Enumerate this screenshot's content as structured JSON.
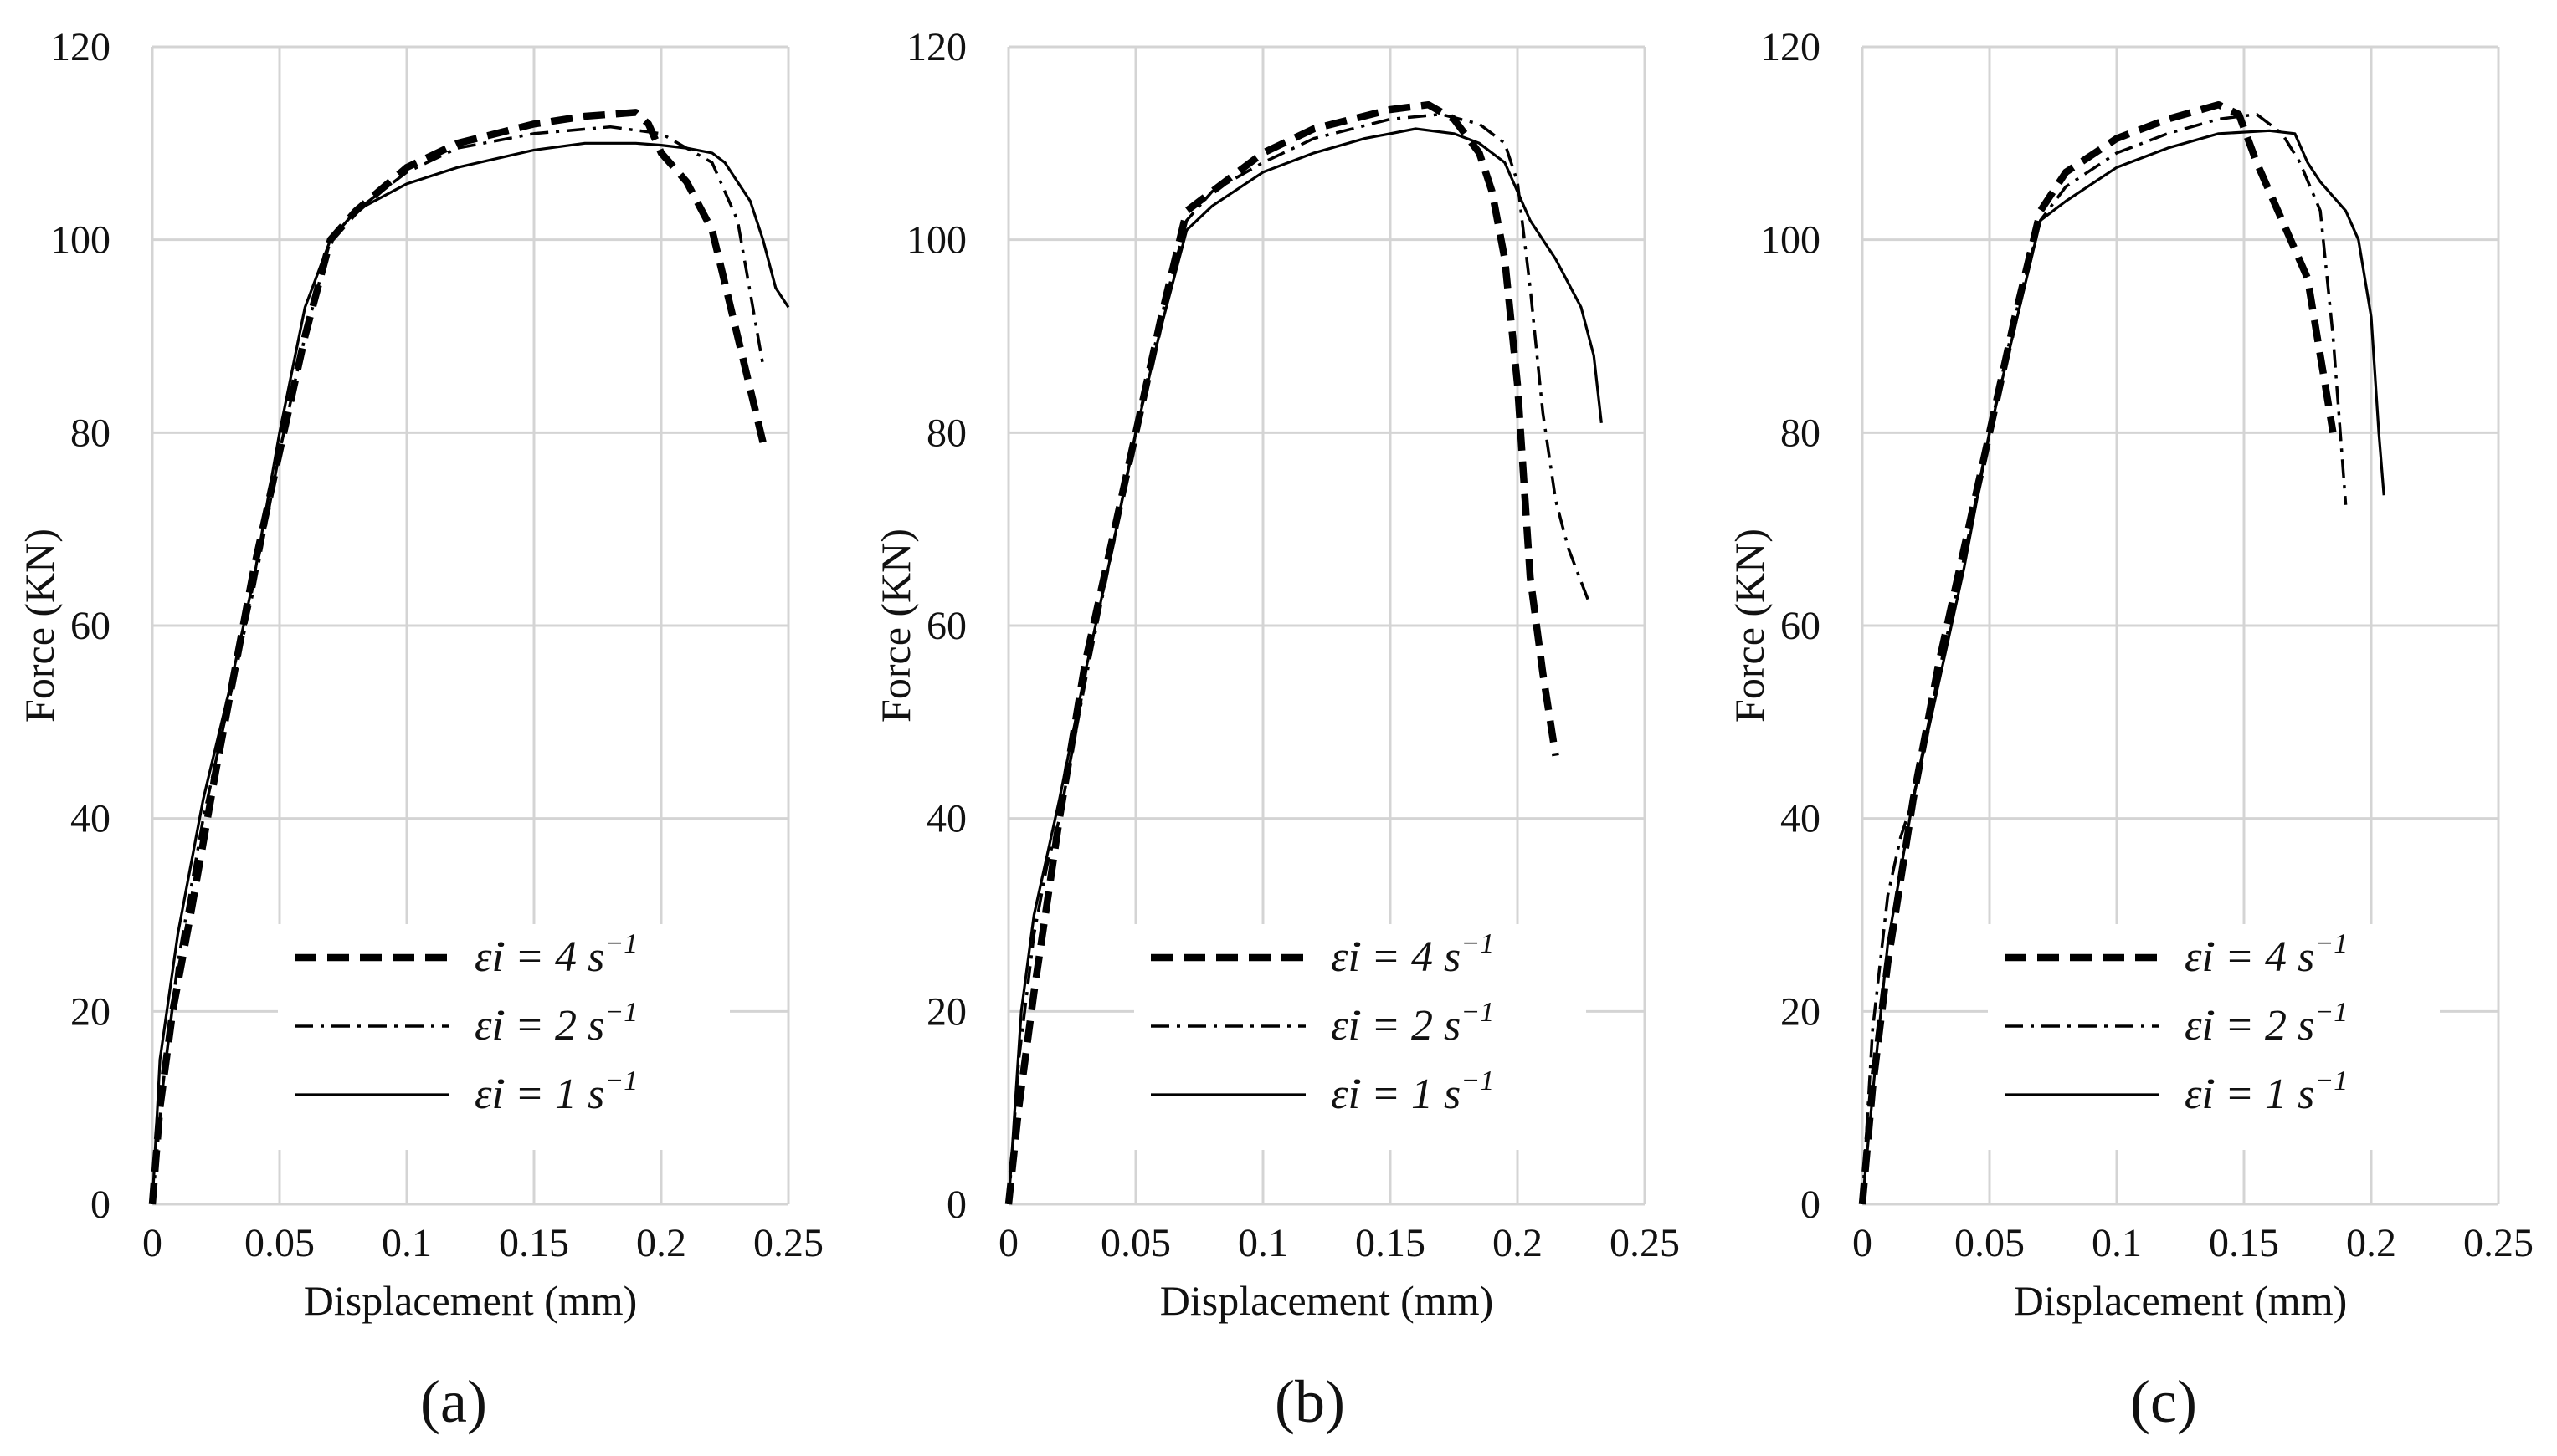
{
  "chart_data": [
    {
      "type": "line",
      "panel_label": "(a)",
      "xlabel": "Displacement (mm)",
      "ylabel": "Force (KN)",
      "xlim": [
        0,
        0.25
      ],
      "ylim": [
        0,
        120
      ],
      "xticks": [
        "0",
        "0.05",
        "0.1",
        "0.15",
        "0.2",
        "0.25"
      ],
      "yticks": [
        "0",
        "20",
        "40",
        "60",
        "80",
        "100",
        "120"
      ],
      "grid": true,
      "legend_position": "bottom-center",
      "series": [
        {
          "name": "ε̇i = 4 s-1",
          "style": "dashed",
          "x": [
            0,
            0.003,
            0.008,
            0.015,
            0.025,
            0.04,
            0.05,
            0.06,
            0.07,
            0.08,
            0.1,
            0.12,
            0.15,
            0.17,
            0.19,
            0.195,
            0.2,
            0.21,
            0.22,
            0.23,
            0.24
          ],
          "y": [
            0,
            10,
            20,
            30,
            45,
            66,
            78,
            90,
            100,
            103,
            107.5,
            110,
            112,
            112.8,
            113.2,
            112,
            109,
            106,
            101,
            90,
            79
          ]
        },
        {
          "name": "ε̇i = 2 s-1",
          "style": "dashdot",
          "x": [
            0,
            0.004,
            0.01,
            0.02,
            0.03,
            0.04,
            0.05,
            0.06,
            0.07,
            0.08,
            0.1,
            0.12,
            0.15,
            0.18,
            0.2,
            0.21,
            0.22,
            0.23,
            0.24
          ],
          "y": [
            0,
            12,
            25,
            40,
            52,
            64,
            78,
            90,
            100,
            103,
            107,
            109.5,
            111,
            111.7,
            111,
            109.5,
            108,
            102,
            87
          ]
        },
        {
          "name": "ε̇i = 1 s-1",
          "style": "solid",
          "x": [
            0,
            0.003,
            0.01,
            0.02,
            0.03,
            0.04,
            0.05,
            0.06,
            0.07,
            0.08,
            0.1,
            0.12,
            0.15,
            0.17,
            0.19,
            0.2,
            0.21,
            0.22,
            0.225,
            0.23,
            0.235,
            0.24,
            0.245,
            0.25
          ],
          "y": [
            0,
            15,
            28,
            42,
            53,
            65,
            80,
            93,
            100,
            103,
            105.8,
            107.5,
            109.3,
            110,
            110,
            109.8,
            109.5,
            109,
            108,
            106,
            104,
            100,
            95,
            93
          ]
        }
      ]
    },
    {
      "type": "line",
      "panel_label": "(b)",
      "xlabel": "Displacement (mm)",
      "ylabel": "Force (KN)",
      "xlim": [
        0,
        0.25
      ],
      "ylim": [
        0,
        120
      ],
      "xticks": [
        "0",
        "0.05",
        "0.1",
        "0.15",
        "0.2",
        "0.25"
      ],
      "yticks": [
        "0",
        "20",
        "40",
        "60",
        "80",
        "100",
        "120"
      ],
      "grid": true,
      "legend_position": "bottom-center",
      "series": [
        {
          "name": "ε̇i = 4 s-1",
          "style": "dashed",
          "x": [
            0,
            0.004,
            0.01,
            0.02,
            0.03,
            0.04,
            0.05,
            0.06,
            0.07,
            0.08,
            0.1,
            0.12,
            0.15,
            0.165,
            0.175,
            0.185,
            0.19,
            0.195,
            0.2,
            0.205,
            0.21,
            0.215
          ],
          "y": [
            0,
            10,
            22,
            40,
            56,
            68,
            80,
            92,
            103,
            105,
            109,
            111.5,
            113.5,
            114,
            112.5,
            109,
            105,
            98,
            85,
            65,
            55,
            46.5
          ]
        },
        {
          "name": "ε̇i = 2 s-1",
          "style": "dashdot",
          "x": [
            0,
            0.004,
            0.01,
            0.015,
            0.02,
            0.03,
            0.04,
            0.05,
            0.06,
            0.07,
            0.08,
            0.1,
            0.12,
            0.15,
            0.17,
            0.185,
            0.195,
            0.2,
            0.205,
            0.21,
            0.215,
            0.22,
            0.228
          ],
          "y": [
            0,
            15,
            28,
            35,
            40,
            54,
            67,
            80,
            92,
            102,
            105,
            108,
            110.5,
            112.5,
            113,
            112,
            110,
            106,
            95,
            82,
            73,
            68,
            62.5
          ]
        },
        {
          "name": "ε̇i = 1 s-1",
          "style": "solid",
          "x": [
            0,
            0.005,
            0.01,
            0.02,
            0.03,
            0.04,
            0.05,
            0.06,
            0.07,
            0.08,
            0.1,
            0.12,
            0.14,
            0.16,
            0.175,
            0.185,
            0.195,
            0.205,
            0.215,
            0.225,
            0.23,
            0.233
          ],
          "y": [
            0,
            20,
            30,
            42,
            55,
            67,
            80,
            91,
            101,
            103.5,
            107,
            109,
            110.5,
            111.5,
            111,
            110,
            108,
            102,
            98,
            93,
            88,
            81
          ]
        }
      ]
    },
    {
      "type": "line",
      "panel_label": "(c)",
      "xlabel": "Displacement (mm)",
      "ylabel": "Force (KN)",
      "xlim": [
        0,
        0.25
      ],
      "ylim": [
        0,
        120
      ],
      "xticks": [
        "0",
        "0.05",
        "0.1",
        "0.15",
        "0.2",
        "0.25"
      ],
      "yticks": [
        "0",
        "20",
        "40",
        "60",
        "80",
        "100",
        "120"
      ],
      "grid": true,
      "legend_position": "bottom-center",
      "series": [
        {
          "name": "ε̇i = 4 s-1",
          "style": "dashed",
          "x": [
            0,
            0.004,
            0.01,
            0.02,
            0.03,
            0.04,
            0.05,
            0.06,
            0.07,
            0.08,
            0.1,
            0.12,
            0.14,
            0.148,
            0.155,
            0.165,
            0.175,
            0.18,
            0.185
          ],
          "y": [
            0,
            12,
            25,
            42,
            56,
            68,
            80,
            92,
            103,
            107,
            110.5,
            112.5,
            114,
            113,
            108,
            102,
            96,
            88,
            80
          ]
        },
        {
          "name": "ε̇i = 2 s-1",
          "style": "dashdot",
          "x": [
            0,
            0.004,
            0.01,
            0.015,
            0.02,
            0.03,
            0.04,
            0.05,
            0.06,
            0.07,
            0.08,
            0.1,
            0.12,
            0.14,
            0.155,
            0.165,
            0.172,
            0.18,
            0.185,
            0.19
          ],
          "y": [
            0,
            18,
            32,
            38,
            42,
            55,
            67,
            80,
            92,
            102,
            105.5,
            109,
            111,
            112.5,
            113,
            111,
            108,
            103,
            90,
            72.5
          ]
        },
        {
          "name": "ε̇i = 1 s-1",
          "style": "solid",
          "x": [
            0,
            0.005,
            0.01,
            0.02,
            0.03,
            0.04,
            0.05,
            0.06,
            0.07,
            0.08,
            0.1,
            0.12,
            0.14,
            0.16,
            0.17,
            0.175,
            0.18,
            0.19,
            0.195,
            0.2,
            0.203,
            0.205
          ],
          "y": [
            0,
            14,
            27,
            42,
            54,
            66,
            80,
            91,
            102,
            104,
            107.5,
            109.5,
            111,
            111.3,
            111,
            108,
            106,
            103,
            100,
            92,
            80,
            73.5
          ]
        }
      ]
    }
  ]
}
